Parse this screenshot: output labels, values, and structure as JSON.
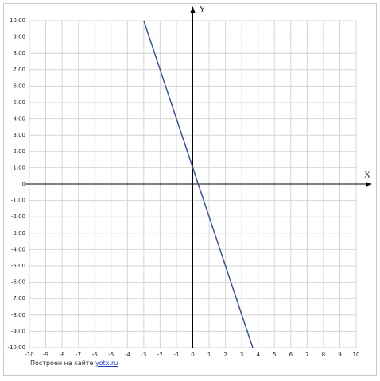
{
  "chart_data": {
    "type": "line",
    "x_label": "X",
    "y_label": "Y",
    "x": [
      -3,
      3.67
    ],
    "values": [
      10,
      -10
    ],
    "color": "#3b5493",
    "xlim": [
      -10,
      10
    ],
    "ylim": [
      -10,
      10
    ],
    "xticks": [
      -10,
      -9,
      -8,
      -7,
      -6,
      -5,
      -4,
      -3,
      -2,
      -1,
      0,
      1,
      2,
      3,
      4,
      5,
      6,
      7,
      8,
      9,
      10
    ],
    "yticks": [
      {
        "value": 10,
        "label": "10.00"
      },
      {
        "value": 9,
        "label": "9.00"
      },
      {
        "value": 8,
        "label": "8.00"
      },
      {
        "value": 7,
        "label": "7.00"
      },
      {
        "value": 6,
        "label": "6.00"
      },
      {
        "value": 5,
        "label": "5.00"
      },
      {
        "value": 4,
        "label": "4.00"
      },
      {
        "value": 3,
        "label": "3.00"
      },
      {
        "value": 2,
        "label": "2.00"
      },
      {
        "value": 1,
        "label": "1.00"
      },
      0,
      {
        "value": -1,
        "label": "-1.00"
      },
      {
        "value": -2,
        "label": "-2.00"
      },
      {
        "value": -3,
        "label": "-3.00"
      },
      {
        "value": -4,
        "label": "-4.00"
      },
      {
        "value": -5,
        "label": "-5.00"
      },
      {
        "value": -6,
        "label": "-6.00"
      },
      {
        "value": -7,
        "label": "-7.00"
      },
      {
        "value": -8,
        "label": "-8.00"
      },
      {
        "value": -9,
        "label": "-9.00"
      },
      {
        "value": -10,
        "label": "-10.00"
      }
    ],
    "grid": true
  },
  "footer": {
    "text": "Построен на сайте",
    "link": "yotx.ru"
  }
}
